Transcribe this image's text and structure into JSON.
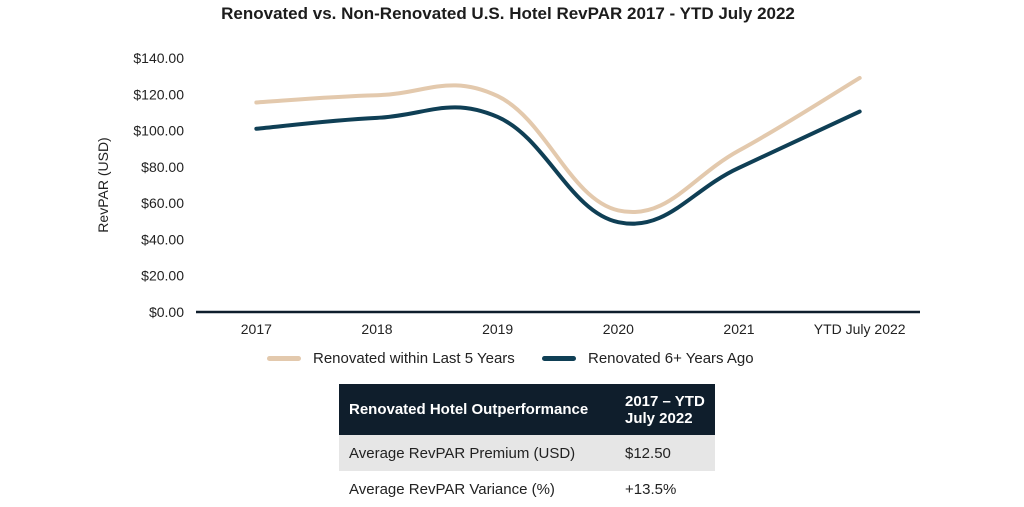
{
  "chart_data": {
    "type": "line",
    "title": "Renovated vs. Non-Renovated U.S. Hotel RevPAR 2017 - YTD July 2022",
    "xlabel": "",
    "ylabel": "RevPAR (USD)",
    "categories": [
      "2017",
      "2018",
      "2019",
      "2020",
      "2021",
      "YTD July 2022"
    ],
    "ylim": [
      0,
      140
    ],
    "yticks": [
      0,
      20,
      40,
      60,
      80,
      100,
      120,
      140
    ],
    "ytick_labels": [
      "$0.00",
      "$20.00",
      "$40.00",
      "$60.00",
      "$80.00",
      "$100.00",
      "$120.00",
      "$140.00"
    ],
    "grid": false,
    "legend_position": "bottom",
    "series": [
      {
        "name": "Renovated within Last 5 Years",
        "color": "#e3c9ad",
        "values": [
          115.5,
          119.5,
          119.0,
          56.0,
          89.0,
          129.0
        ]
      },
      {
        "name": "Renovated 6+ Years Ago",
        "color": "#0f3f55",
        "values": [
          101.0,
          107.0,
          107.5,
          49.5,
          79.5,
          110.5
        ]
      }
    ]
  },
  "table": {
    "header": {
      "label": "Renovated Hotel Outperformance",
      "value_line1": "2017 – YTD",
      "value_line2": "July 2022"
    },
    "rows": [
      {
        "label": "Average RevPAR Premium (USD)",
        "value": "$12.50"
      },
      {
        "label": "Average RevPAR Variance (%)",
        "value": "+13.5%"
      }
    ]
  },
  "colors": {
    "header_bg": "#0f1e2c",
    "row_shade": "#e6e6e6",
    "axis": "#0f1e2c"
  }
}
